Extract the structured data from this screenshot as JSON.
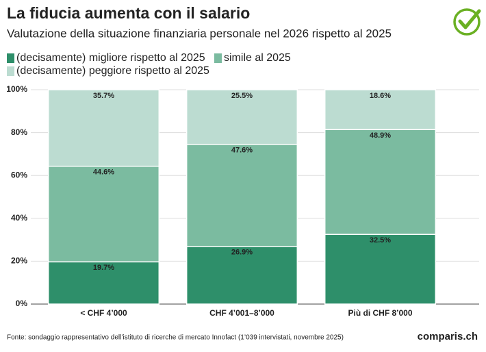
{
  "chart_data": {
    "type": "stacked_bar",
    "title": "La fiducia aumenta con il salario",
    "subtitle": "Valutazione della situazione finanziaria personale nel 2026 rispetto al 2025",
    "categories": [
      "< CHF 4’000",
      "CHF 4’001–8’000",
      "Più di CHF 8’000"
    ],
    "series": [
      {
        "name": "(decisamente) migliore rispetto al 2025",
        "color": "#2e8f6a",
        "values": [
          19.7,
          26.9,
          32.5
        ],
        "value_labels": [
          "19.7%",
          "26.9%",
          "32.5%"
        ]
      },
      {
        "name": "simile al 2025",
        "color": "#7bbba0",
        "values": [
          44.6,
          47.6,
          48.9
        ],
        "value_labels": [
          "44.6%",
          "47.6%",
          "48.9%"
        ]
      },
      {
        "name": "(decisamente) peggiore rispetto al 2025",
        "color": "#bcdcd1",
        "values": [
          35.7,
          25.5,
          18.6
        ],
        "value_labels": [
          "35.7%",
          "25.5%",
          "18.6%"
        ]
      }
    ],
    "ylim": [
      0,
      100
    ],
    "yticks": [
      {
        "value": 0,
        "label": "0%"
      },
      {
        "value": 20,
        "label": "20%"
      },
      {
        "value": 40,
        "label": "40%"
      },
      {
        "value": 60,
        "label": "60%"
      },
      {
        "value": 80,
        "label": "80%"
      },
      {
        "value": 100,
        "label": "100%"
      }
    ],
    "grid": true,
    "source": "Fonte: sondaggio rappresentativo dell’istituto di ricerche di mercato Innofact (1’039 intervistati, novembre 2025)",
    "logo": "comparis.ch"
  }
}
